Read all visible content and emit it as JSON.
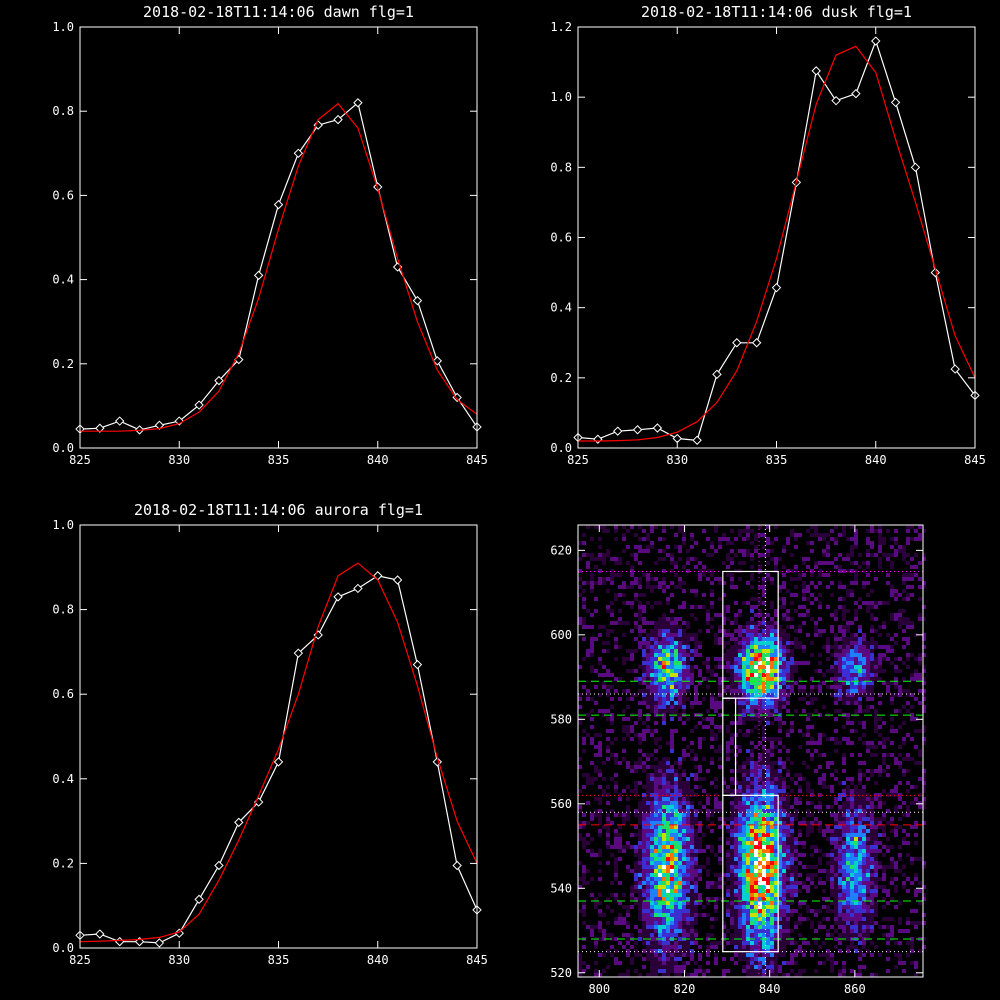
{
  "chart_data": [
    {
      "type": "line",
      "title": "2018-02-18T11:14:06 dawn flg=1",
      "xlim": [
        825,
        845
      ],
      "ylim": [
        0.0,
        1.0
      ],
      "xticks": [
        "825",
        "830",
        "835",
        "840",
        "845"
      ],
      "yticks": [
        "0.0",
        "0.2",
        "0.4",
        "0.6",
        "0.8",
        "1.0"
      ],
      "series": [
        {
          "kind": "measured",
          "color": "#ffffff",
          "marker": "diamond",
          "x": [
            825,
            826,
            827,
            828,
            829,
            830,
            831,
            832,
            833,
            834,
            835,
            836,
            837,
            838,
            839,
            840,
            841,
            842,
            843,
            844,
            845
          ],
          "y": [
            0.045,
            0.047,
            0.064,
            0.043,
            0.054,
            0.064,
            0.102,
            0.16,
            0.21,
            0.41,
            0.578,
            0.7,
            0.767,
            0.78,
            0.82,
            0.62,
            0.43,
            0.35,
            0.207,
            0.12,
            0.05
          ]
        },
        {
          "kind": "fit",
          "color": "#ff0000",
          "x": [
            825,
            826,
            827,
            828,
            829,
            830,
            831,
            832,
            833,
            834,
            835,
            836,
            837,
            838,
            839,
            840,
            841,
            842,
            843,
            844,
            845
          ],
          "y": [
            0.04,
            0.04,
            0.04,
            0.042,
            0.046,
            0.058,
            0.085,
            0.135,
            0.225,
            0.355,
            0.52,
            0.67,
            0.78,
            0.818,
            0.76,
            0.615,
            0.45,
            0.3,
            0.185,
            0.115,
            0.08
          ]
        }
      ]
    },
    {
      "type": "line",
      "title": "2018-02-18T11:14:06 dusk flg=1",
      "xlim": [
        825,
        845
      ],
      "ylim": [
        0.0,
        1.2
      ],
      "xticks": [
        "825",
        "830",
        "835",
        "840",
        "845"
      ],
      "yticks": [
        "0.0",
        "0.2",
        "0.4",
        "0.6",
        "0.8",
        "1.0",
        "1.2"
      ],
      "series": [
        {
          "kind": "measured",
          "color": "#ffffff",
          "marker": "diamond",
          "x": [
            825,
            826,
            827,
            828,
            829,
            830,
            831,
            832,
            833,
            834,
            835,
            836,
            837,
            838,
            839,
            840,
            841,
            842,
            843,
            844,
            845
          ],
          "y": [
            0.03,
            0.025,
            0.048,
            0.052,
            0.057,
            0.027,
            0.022,
            0.21,
            0.3,
            0.3,
            0.457,
            0.757,
            1.075,
            0.99,
            1.01,
            1.16,
            0.985,
            0.8,
            0.5,
            0.225,
            0.15
          ]
        },
        {
          "kind": "fit",
          "color": "#ff0000",
          "x": [
            825,
            826,
            827,
            828,
            829,
            830,
            831,
            832,
            833,
            834,
            835,
            836,
            837,
            838,
            839,
            840,
            841,
            842,
            843,
            844,
            845
          ],
          "y": [
            0.02,
            0.02,
            0.021,
            0.023,
            0.03,
            0.045,
            0.075,
            0.13,
            0.22,
            0.36,
            0.54,
            0.76,
            0.98,
            1.12,
            1.145,
            1.07,
            0.88,
            0.7,
            0.51,
            0.32,
            0.2
          ]
        }
      ]
    },
    {
      "type": "line",
      "title": "2018-02-18T11:14:06 aurora flg=1",
      "xlim": [
        825,
        845
      ],
      "ylim": [
        0.0,
        1.0
      ],
      "xticks": [
        "825",
        "830",
        "835",
        "840",
        "845"
      ],
      "yticks": [
        "0.0",
        "0.2",
        "0.4",
        "0.6",
        "0.8",
        "1.0"
      ],
      "series": [
        {
          "kind": "measured",
          "color": "#ffffff",
          "marker": "diamond",
          "x": [
            825,
            826,
            827,
            828,
            829,
            830,
            831,
            832,
            833,
            834,
            835,
            836,
            837,
            838,
            839,
            840,
            841,
            842,
            843,
            844,
            845
          ],
          "y": [
            0.03,
            0.033,
            0.015,
            0.015,
            0.012,
            0.035,
            0.115,
            0.195,
            0.297,
            0.345,
            0.44,
            0.697,
            0.74,
            0.83,
            0.85,
            0.88,
            0.87,
            0.67,
            0.44,
            0.195,
            0.09
          ]
        },
        {
          "kind": "fit",
          "color": "#ff0000",
          "x": [
            825,
            826,
            827,
            828,
            829,
            830,
            831,
            832,
            833,
            834,
            835,
            836,
            837,
            838,
            839,
            840,
            841,
            842,
            843,
            844,
            845
          ],
          "y": [
            0.015,
            0.016,
            0.018,
            0.02,
            0.025,
            0.038,
            0.08,
            0.16,
            0.255,
            0.36,
            0.47,
            0.6,
            0.76,
            0.88,
            0.91,
            0.87,
            0.77,
            0.62,
            0.45,
            0.3,
            0.2
          ]
        }
      ]
    },
    {
      "type": "heatmap",
      "title": "",
      "xlim": [
        795,
        876
      ],
      "ylim": [
        519,
        626
      ],
      "xticks": [
        "800",
        "820",
        "840",
        "860"
      ],
      "yticks": [
        "520",
        "540",
        "560",
        "580",
        "600",
        "620"
      ],
      "colorscale": [
        "#000000",
        "#2a0038",
        "#5a0a80",
        "#3a2fd0",
        "#1f7fff",
        "#00d0d0",
        "#20e060",
        "#c8e000",
        "#ff7000",
        "#ff0000",
        "#ffffff"
      ],
      "blobs": [
        {
          "x": 816,
          "y": 592,
          "sx": 3.0,
          "sy": 5.5,
          "amp": 0.6
        },
        {
          "x": 838,
          "y": 592,
          "sx": 3.5,
          "sy": 5.5,
          "amp": 0.92
        },
        {
          "x": 860,
          "y": 592,
          "sx": 3.0,
          "sy": 4.5,
          "amp": 0.4
        },
        {
          "x": 816,
          "y": 545,
          "sx": 3.5,
          "sy": 12.0,
          "amp": 0.72
        },
        {
          "x": 838,
          "y": 545,
          "sx": 3.5,
          "sy": 12.0,
          "amp": 0.95
        },
        {
          "x": 860,
          "y": 545,
          "sx": 3.0,
          "sy": 10.0,
          "amp": 0.45
        }
      ],
      "hlines": [
        {
          "y": 615,
          "color": "#ff00ff",
          "style": "dotted"
        },
        {
          "y": 589,
          "color": "#00ff00",
          "style": "dashed"
        },
        {
          "y": 586,
          "color": "#ffffff",
          "style": "dotted"
        },
        {
          "y": 581,
          "color": "#00ff00",
          "style": "dashed"
        },
        {
          "y": 562,
          "color": "#ff0000",
          "style": "dotted"
        },
        {
          "y": 558,
          "color": "#ffffff",
          "style": "dotted"
        },
        {
          "y": 555,
          "color": "#ff0000",
          "style": "dashed"
        },
        {
          "y": 537,
          "color": "#00ff00",
          "style": "dashed"
        },
        {
          "y": 528,
          "color": "#00ff00",
          "style": "dashed"
        },
        {
          "y": 525,
          "color": "#ffffff",
          "style": "dotted"
        }
      ],
      "vlines": [
        {
          "x": 837.5,
          "color": "#ff00ff",
          "style": "dotted"
        },
        {
          "x": 839,
          "color": "#ffffff",
          "style": "dotted"
        }
      ],
      "boxes": [
        {
          "x0": 829,
          "x1": 842,
          "y0": 585,
          "y1": 615
        },
        {
          "x0": 829,
          "x1": 842,
          "y0": 525,
          "y1": 562
        },
        {
          "x0": 829,
          "x1": 832,
          "y0": 562,
          "y1": 585
        }
      ]
    }
  ]
}
